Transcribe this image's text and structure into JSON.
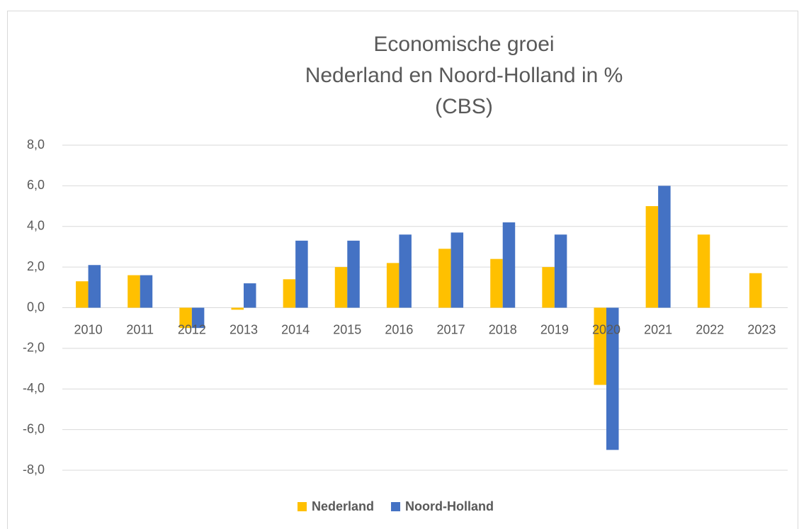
{
  "chart_data": {
    "type": "bar",
    "title": [
      "Economische groei",
      "Nederland en Noord-Holland in %",
      "(CBS)"
    ],
    "categories": [
      "2010",
      "2011",
      "2012",
      "2013",
      "2014",
      "2015",
      "2016",
      "2017",
      "2018",
      "2019",
      "2020",
      "2021",
      "2022",
      "2023"
    ],
    "series": [
      {
        "name": "Nederland",
        "color": "#FFC000",
        "values": [
          1.3,
          1.6,
          -1.0,
          -0.1,
          1.4,
          2.0,
          2.2,
          2.9,
          2.4,
          2.0,
          -3.8,
          5.0,
          3.6,
          1.7
        ]
      },
      {
        "name": "Noord-Holland",
        "color": "#4472C4",
        "values": [
          2.1,
          1.6,
          -1.0,
          1.2,
          3.3,
          3.3,
          3.6,
          3.7,
          4.2,
          3.6,
          -7.0,
          6.0,
          null,
          null
        ]
      }
    ],
    "ylim": [
      -8,
      8
    ],
    "yticks": [
      {
        "value": -8,
        "label": "-8,0"
      },
      {
        "value": -6,
        "label": "-6,0"
      },
      {
        "value": -4,
        "label": "-4,0"
      },
      {
        "value": -2,
        "label": "-2,0"
      },
      {
        "value": 0,
        "label": "0,0"
      },
      {
        "value": 2,
        "label": "2,0"
      },
      {
        "value": 4,
        "label": "4,0"
      },
      {
        "value": 6,
        "label": "6,0"
      },
      {
        "value": 8,
        "label": "8,0"
      }
    ],
    "grid": true,
    "legend": "bottom"
  }
}
